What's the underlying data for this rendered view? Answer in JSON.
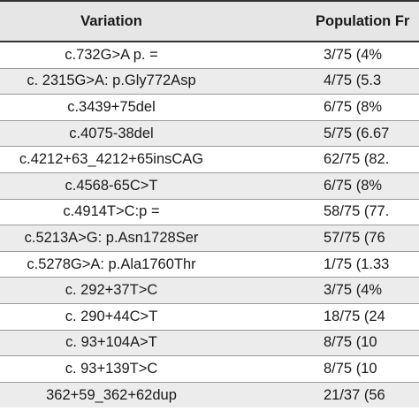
{
  "table": {
    "headers": [
      "Variation",
      "Population Fr"
    ],
    "rows": [
      {
        "variation": "c.732G>A p. =",
        "frequency": "3/75 (4%"
      },
      {
        "variation": "c. 2315G>A: p.Gly772Asp",
        "frequency": "4/75 (5.3"
      },
      {
        "variation": "c.3439+75del",
        "frequency": "6/75 (8%"
      },
      {
        "variation": "c.4075-38del",
        "frequency": "5/75 (6.67"
      },
      {
        "variation": "c.4212+63_4212+65insCAG",
        "frequency": "62/75 (82."
      },
      {
        "variation": "c.4568-65C>T",
        "frequency": "6/75 (8%"
      },
      {
        "variation": "c.4914T>C:p =",
        "frequency": "58/75 (77."
      },
      {
        "variation": "c.5213A>G: p.Asn1728Ser",
        "frequency": "57/75 (76"
      },
      {
        "variation": "c.5278G>A: p.Ala1760Thr",
        "frequency": "1/75 (1.33"
      },
      {
        "variation": "c. 292+37T>C",
        "frequency": "3/75 (4%"
      },
      {
        "variation": "c. 290+44C>T",
        "frequency": "18/75 (24"
      },
      {
        "variation": "c. 93+104A>T",
        "frequency": "8/75 (10"
      },
      {
        "variation": "c. 93+139T>C",
        "frequency": "8/75 (10"
      },
      {
        "variation": "362+59_362+62dup",
        "frequency": "21/37 (56"
      }
    ]
  }
}
